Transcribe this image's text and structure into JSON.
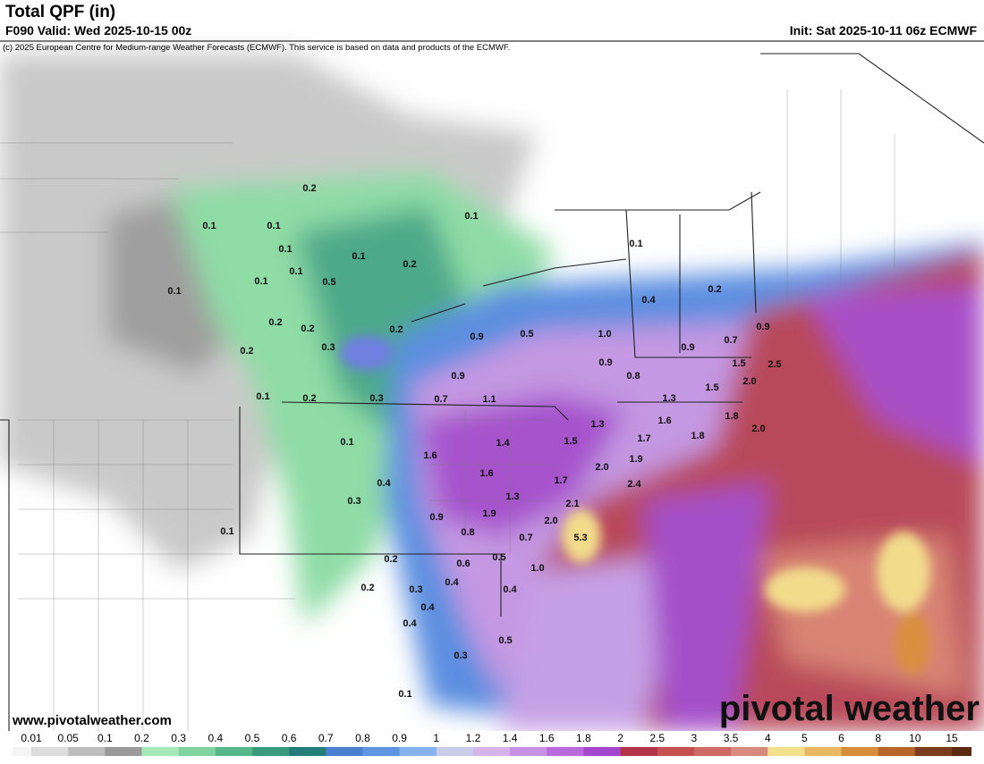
{
  "header": {
    "title": "Total QPF (in)",
    "valid": "F090 Valid: Wed 2025-10-15 00z",
    "init": "Init: Sat 2025-10-11 06z ECMWF",
    "copyright": "(c) 2025 European Centre for Medium-range Weather Forecasts (ECMWF). This service is based on data and products of the ECMWF."
  },
  "map": {
    "labels": [
      "0.2",
      "0.1",
      "0.1",
      "0.1",
      "0.1",
      "0.1",
      "0.2",
      "0.1",
      "0.1",
      "0.5",
      "0.1",
      "0.1",
      "0.4",
      "0.2",
      "0.2",
      "0.2",
      "0.3",
      "0.2",
      "0.9",
      "0.5",
      "1.0",
      "0.9",
      "0.7",
      "0.9",
      "0.2",
      "0.9",
      "1.5",
      "2.5",
      "0.9",
      "0.8",
      "2.0",
      "0.1",
      "0.2",
      "0.3",
      "0.7",
      "1.1",
      "1.3",
      "1.5",
      "1.3",
      "1.6",
      "1.8",
      "2.0",
      "0.1",
      "1.4",
      "1.5",
      "1.7",
      "1.8",
      "1.6",
      "1.9",
      "2.0",
      "1.6",
      "0.4",
      "1.7",
      "2.4",
      "1.3",
      "0.3",
      "2.1",
      "1.9",
      "0.9",
      "2.0",
      "0.8",
      "0.7",
      "5.3",
      "0.1",
      "0.2",
      "0.5",
      "0.6",
      "1.0",
      "0.2",
      "0.3",
      "0.4",
      "0.4",
      "0.4",
      "0.4",
      "0.5",
      "0.3",
      "0.1"
    ]
  },
  "footer": {
    "url": "www.pivotalweather.com",
    "watermark": "pivotal weather"
  },
  "legend": {
    "labels": [
      "0.01",
      "0.05",
      "0.1",
      "0.2",
      "0.3",
      "0.4",
      "0.5",
      "0.6",
      "0.7",
      "0.8",
      "0.9",
      "1",
      "1.2",
      "1.4",
      "1.6",
      "1.8",
      "2",
      "2.5",
      "3",
      "3.5",
      "4",
      "5",
      "6",
      "8",
      "10",
      "15"
    ],
    "colors": [
      "#dcdcdc",
      "#bdbdbd",
      "#9a9a9a",
      "#a6e8b8",
      "#7fd3a0",
      "#55b78a",
      "#3a9a7c",
      "#247d78",
      "#4a7fd0",
      "#5f95e0",
      "#86b2ee",
      "#c7cde8",
      "#d6b3ea",
      "#c792e4",
      "#b86cdb",
      "#a447cc",
      "#b5344a",
      "#c4504f",
      "#cf6a66",
      "#d98a7e",
      "#f4df8c",
      "#e8b862",
      "#d88d3d",
      "#b8652a",
      "#7a3c1c"
    ]
  }
}
